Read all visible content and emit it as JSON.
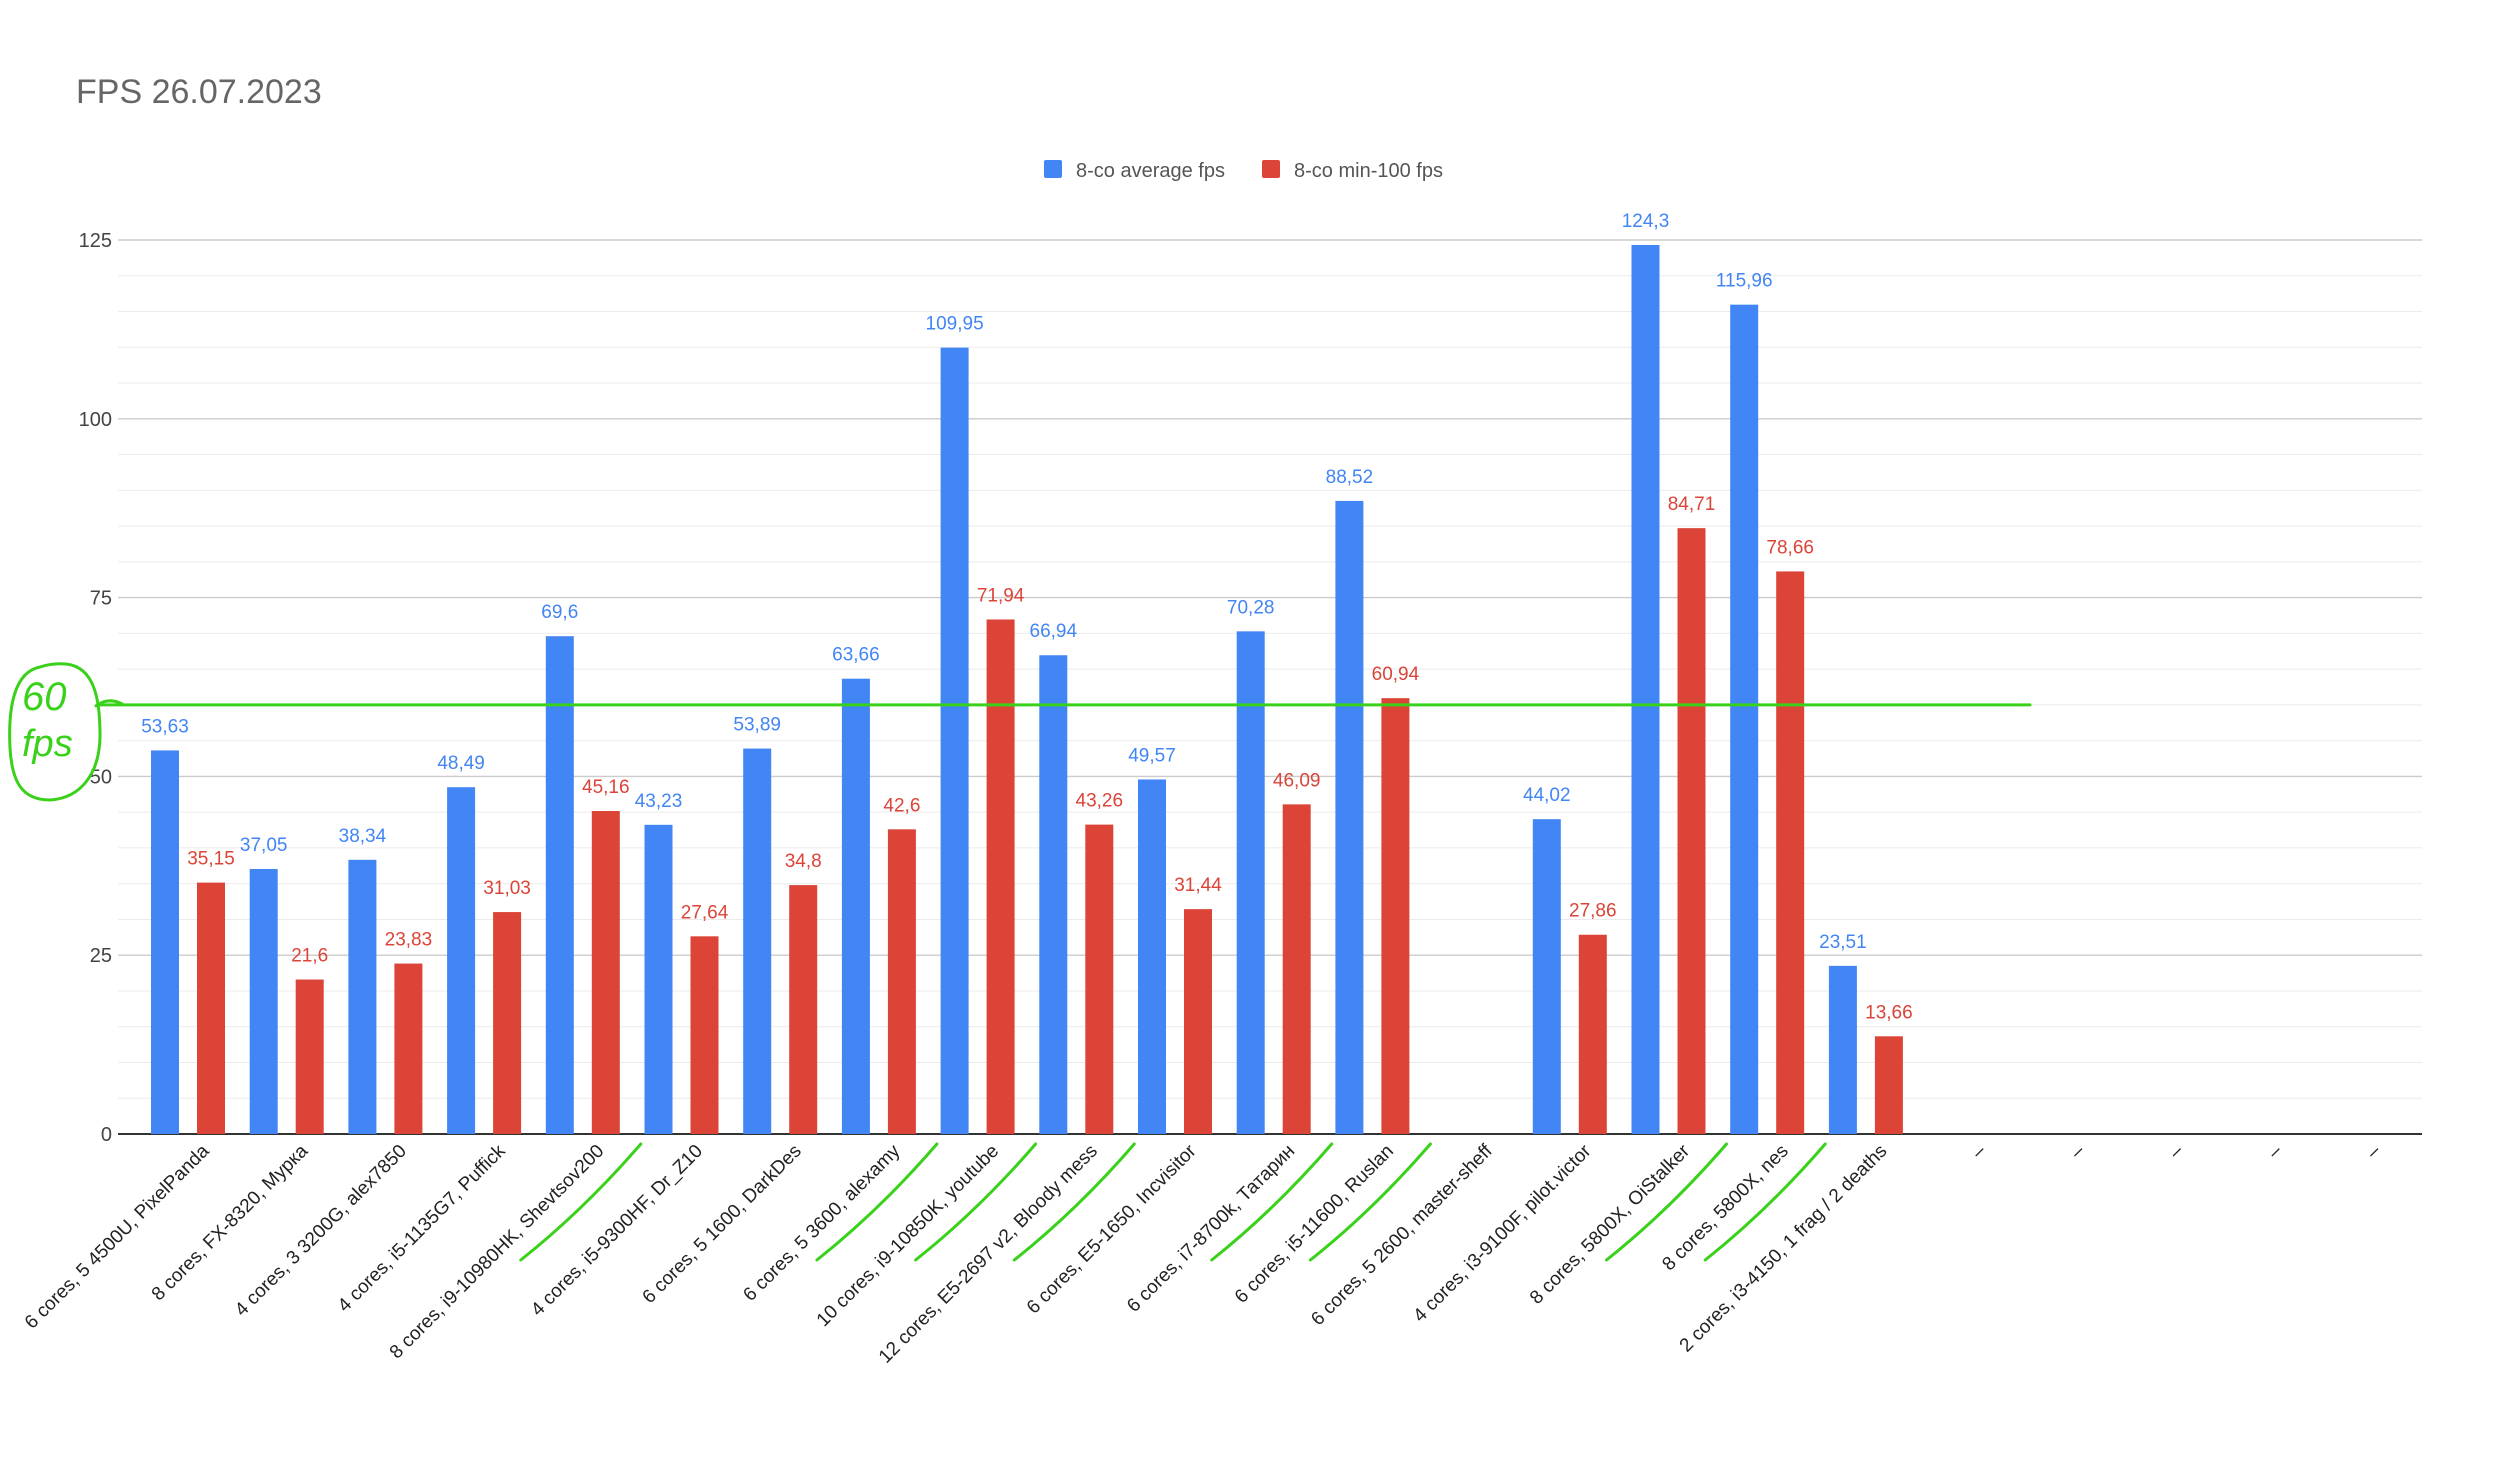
{
  "chart_data": {
    "type": "bar",
    "title": "FPS 26.07.2023",
    "xlabel": "",
    "ylabel": "",
    "ylim": [
      0,
      125
    ],
    "y_ticks": [
      0,
      25,
      50,
      75,
      100,
      125
    ],
    "grid": true,
    "legend_position": "top-center",
    "categories": [
      "6 cores, 5 4500U, PixelPanda",
      "8 cores, FX-8320, Мурка",
      "4 cores, 3 3200G, alex7850",
      "4 cores, i5-1135G7, Puffick",
      "8 cores, i9-10980HK, Shevtsov200",
      "4 cores, i5-9300HF, Dr_Z10",
      "6 cores, 5 1600, DarkDes",
      "6 cores, 5 3600, alexamy",
      "10 cores, i9-10850K, youtube",
      "12 cores, E5-2697 v2, Bloody mess",
      "6 cores, E5-1650, Incvisitor",
      "6 cores, i7-8700k, Татарин",
      "6 cores, i5-11600, Ruslan",
      "6 cores, 5 2600, master-sheff",
      "4 cores, i3-9100F, pilot.victor",
      "8 cores, 5800X, OiStalker",
      "8 cores, 5800X, nes",
      "2 cores, i3-4150, 1 frag / 2 deaths",
      "–",
      "–",
      "–",
      "–",
      "–"
    ],
    "series": [
      {
        "name": "8-co average fps",
        "color": "#4285f4",
        "values": [
          53.63,
          37.05,
          38.34,
          48.49,
          69.6,
          43.23,
          53.89,
          63.66,
          109.95,
          66.94,
          49.57,
          70.28,
          88.52,
          null,
          44.02,
          124.3,
          115.96,
          23.51,
          null,
          null,
          null,
          null,
          null
        ],
        "labels": [
          "53,63",
          "37,05",
          "38,34",
          "48,49",
          "69,6",
          "43,23",
          "53,89",
          "63,66",
          "109,95",
          "66,94",
          "49,57",
          "70,28",
          "88,52",
          "",
          "44,02",
          "124,3",
          "115,96",
          "23,51",
          "",
          "",
          "",
          "",
          ""
        ]
      },
      {
        "name": "8-co min-100 fps",
        "color": "#db4437",
        "values": [
          35.15,
          21.6,
          23.83,
          31.03,
          45.16,
          27.64,
          34.8,
          42.6,
          71.94,
          43.26,
          31.44,
          46.09,
          60.94,
          null,
          27.86,
          84.71,
          78.66,
          13.66,
          null,
          null,
          null,
          null,
          null
        ],
        "labels": [
          "35,15",
          "21,6",
          "23,83",
          "31,03",
          "45,16",
          "27,64",
          "34,8",
          "42,6",
          "71,94",
          "43,26",
          "31,44",
          "46,09",
          "60,94",
          "",
          "27,86",
          "84,71",
          "78,66",
          "13,66",
          "",
          "",
          "",
          "",
          ""
        ]
      }
    ],
    "annotation": {
      "text_line1": "60",
      "text_line2": "fps",
      "value": 60,
      "color": "#3ad11b",
      "underlined_categories": [
        4,
        7,
        8,
        9,
        11,
        12,
        15,
        16
      ]
    }
  }
}
